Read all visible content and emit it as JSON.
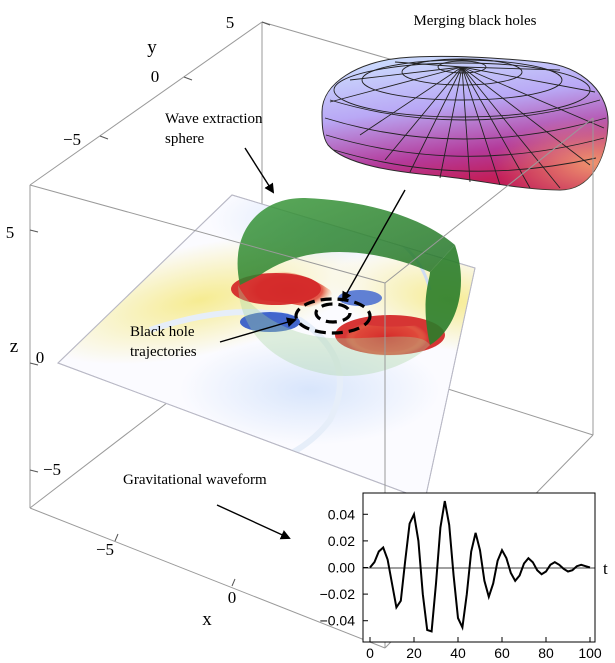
{
  "annotations": {
    "merging": "Merging black holes",
    "extraction_1": "Wave extraction",
    "extraction_2": "sphere",
    "trajectories_1": "Black hole",
    "trajectories_2": "trajectories",
    "waveform": "Gravitational waveform"
  },
  "axes3d": {
    "x_label": "x",
    "y_label": "y",
    "z_label": "z",
    "x_ticks": [
      "−5",
      "0"
    ],
    "y_ticks": [
      "5",
      "0",
      "−5"
    ],
    "z_ticks": [
      "5",
      "0",
      "−5"
    ]
  },
  "colors": {
    "positive": "#d42a2a",
    "mid_positive": "#f5e98a",
    "negative": "#2f56c8",
    "sphere": "#2e8b2e",
    "horizon_top": "#9fd0ff",
    "horizon_bottom": "#c0207a"
  },
  "chart_data": {
    "type": "line",
    "x_label": "t",
    "x_ticks": [
      "0",
      "20",
      "40",
      "60",
      "80",
      "100"
    ],
    "y_ticks": [
      "0.04",
      "0.02",
      "0.00",
      "−0.02",
      "−0.04"
    ],
    "xlim": [
      0,
      100
    ],
    "ylim": [
      -0.056,
      0.056
    ],
    "series": [
      {
        "x": [
          0,
          2,
          4,
          6,
          8,
          10,
          12,
          14,
          16,
          18,
          20,
          22,
          24,
          26,
          28,
          30,
          32,
          34,
          36,
          38,
          40,
          42,
          44,
          46,
          48,
          50,
          52,
          54,
          56,
          58,
          60,
          62,
          64,
          66,
          68,
          70,
          72,
          74,
          76,
          78,
          80,
          82,
          84,
          86,
          88,
          90,
          92,
          94,
          96,
          98,
          100
        ],
        "y": [
          0.0,
          0.004,
          0.012,
          0.015,
          0.006,
          -0.012,
          -0.03,
          -0.025,
          0.005,
          0.033,
          0.04,
          0.02,
          -0.02,
          -0.047,
          -0.048,
          -0.012,
          0.03,
          0.05,
          0.032,
          -0.006,
          -0.038,
          -0.045,
          -0.02,
          0.012,
          0.026,
          0.013,
          -0.01,
          -0.022,
          -0.012,
          0.005,
          0.013,
          0.007,
          -0.004,
          -0.01,
          -0.006,
          0.003,
          0.007,
          0.004,
          -0.002,
          -0.005,
          -0.003,
          0.002,
          0.004,
          0.002,
          -0.001,
          -0.003,
          -0.002,
          0.001,
          0.002,
          0.001,
          0.0
        ]
      }
    ]
  }
}
